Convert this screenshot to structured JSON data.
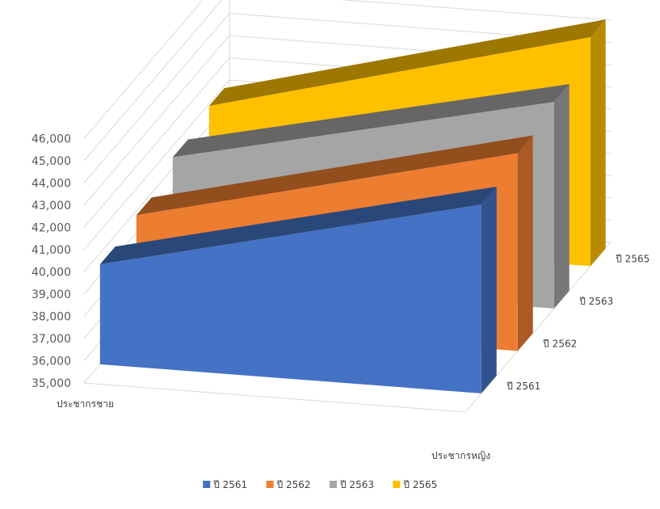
{
  "chart_data": {
    "type": "area",
    "subtype": "3d-area",
    "title": "",
    "categories": [
      "ประชากรชาย",
      "ประชากรหญิง"
    ],
    "yticks": [
      "35,000",
      "36,000",
      "37,000",
      "38,000",
      "39,000",
      "40,000",
      "41,000",
      "42,000",
      "43,000",
      "44,000",
      "45,000",
      "46,000"
    ],
    "ylim": [
      35000,
      46000
    ],
    "series": [
      {
        "name": "ปี 2561",
        "values": [
          39500,
          43500
        ],
        "color": "#4472C4"
      },
      {
        "name": "ปี 2562",
        "values": [
          39800,
          43900
        ],
        "color": "#ED7D31"
      },
      {
        "name": "ปี 2563",
        "values": [
          40500,
          44300
        ],
        "color": "#A5A5A5"
      },
      {
        "name": "ปี 2565",
        "values": [
          40900,
          45300
        ],
        "color": "#FFC000"
      }
    ],
    "depth_labels": [
      "ปี 2561",
      "ปี 2562",
      "ปี 2563",
      "ปี 2565"
    ],
    "legend": {
      "position": "bottom"
    },
    "grid": true
  }
}
